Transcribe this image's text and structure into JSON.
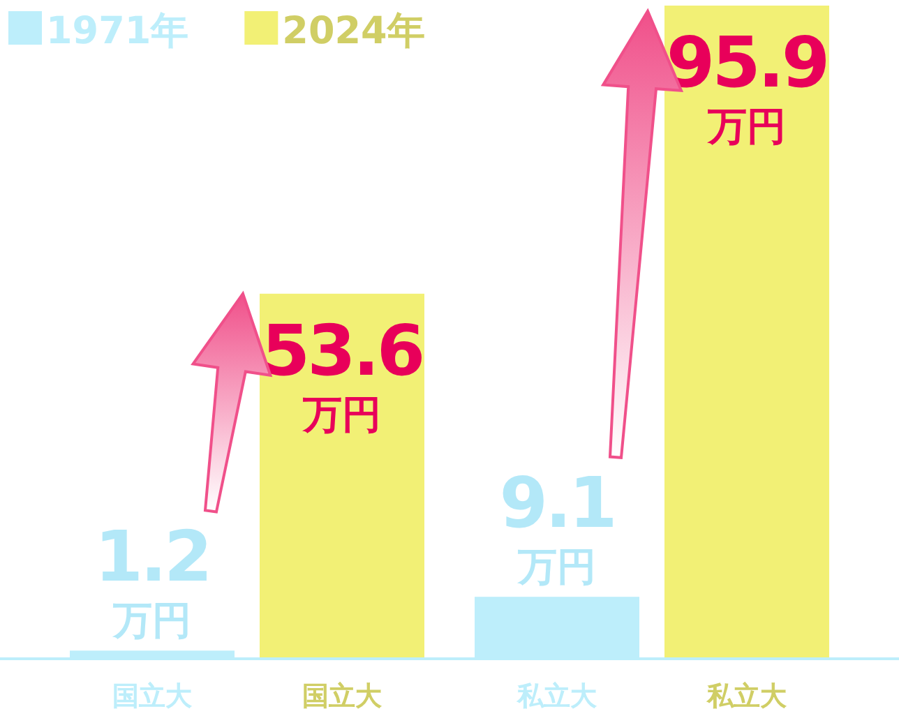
{
  "chart_data": {
    "type": "bar",
    "categories": [
      "国立大",
      "私立大"
    ],
    "series": [
      {
        "name": "1971年",
        "color": "#bdeefb",
        "values": [
          1.2,
          9.1
        ],
        "value_labels": [
          "1.2万円",
          "9.1万円"
        ]
      },
      {
        "name": "2024年",
        "color": "#f2f075",
        "values": [
          53.6,
          95.9
        ],
        "value_labels": [
          "53.6万円",
          "95.9万円"
        ]
      }
    ],
    "legend": "top left"
  }
}
